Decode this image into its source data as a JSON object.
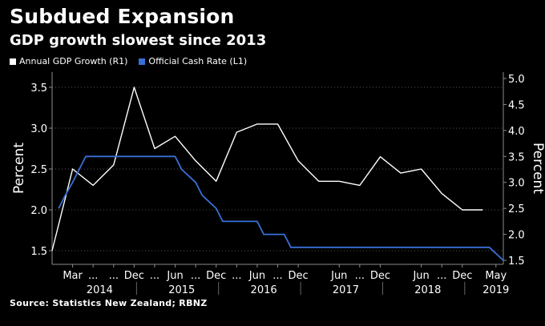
{
  "chart_data": {
    "type": "line",
    "title": "Subdued Expansion",
    "subtitle": "GDP growth slowest since 2013",
    "source": "Source: Statistics New Zealand; RBNZ",
    "colors": {
      "background": "#000000",
      "gdp": "#ffffff",
      "ocr": "#3a6fd8",
      "axis": "#8c8c8c"
    },
    "left_axis": {
      "label": "Percent",
      "ticks": [
        "1.5",
        "2.0",
        "2.5",
        "3.0",
        "3.5"
      ],
      "values": [
        1.5,
        2.0,
        2.5,
        3.0,
        3.5
      ],
      "range": [
        1.5,
        3.5
      ]
    },
    "right_axis": {
      "label": "Percent",
      "ticks": [
        "1.5",
        "2.0",
        "2.5",
        "3.0",
        "3.5",
        "4.0",
        "4.5",
        "5.0"
      ],
      "values": [
        1.5,
        2.0,
        2.5,
        3.0,
        3.5,
        4.0,
        4.5,
        5.0
      ],
      "range": [
        1.5,
        5.0
      ]
    },
    "x_month_ticks": [
      {
        "label": "Mar",
        "t": 2014.17
      },
      {
        "label": "...",
        "t": 2014.42
      },
      {
        "label": "...",
        "t": 2014.67
      },
      {
        "label": "Dec",
        "t": 2014.92
      },
      {
        "label": "...",
        "t": 2015.17
      },
      {
        "label": "Jun",
        "t": 2015.42
      },
      {
        "label": "...",
        "t": 2015.67
      },
      {
        "label": "Dec",
        "t": 2015.92
      },
      {
        "label": "...",
        "t": 2016.17
      },
      {
        "label": "Jun",
        "t": 2016.42
      },
      {
        "label": "...",
        "t": 2016.67
      },
      {
        "label": "Dec",
        "t": 2016.92
      },
      {
        "label": "Jun",
        "t": 2017.42
      },
      {
        "label": "...",
        "t": 2017.67
      },
      {
        "label": "Dec",
        "t": 2017.92
      },
      {
        "label": "Jun",
        "t": 2018.42
      },
      {
        "label": "...",
        "t": 2018.67
      },
      {
        "label": "Dec",
        "t": 2018.92
      },
      {
        "label": "May",
        "t": 2019.33
      }
    ],
    "x_year_labels": [
      {
        "label": "2014",
        "t": 2014.5
      },
      {
        "label": "2015",
        "t": 2015.5
      },
      {
        "label": "2016",
        "t": 2016.5
      },
      {
        "label": "2017",
        "t": 2017.5
      },
      {
        "label": "2018",
        "t": 2018.5
      },
      {
        "label": "2019",
        "t": 2019.33
      }
    ],
    "series": [
      {
        "name": "Annual GDP Growth (R1)",
        "axis": "left",
        "color": "#ffffff",
        "points": [
          [
            2013.92,
            1.5
          ],
          [
            2014.17,
            2.5
          ],
          [
            2014.42,
            2.3
          ],
          [
            2014.67,
            2.55
          ],
          [
            2014.92,
            3.5
          ],
          [
            2015.17,
            2.75
          ],
          [
            2015.42,
            2.9
          ],
          [
            2015.67,
            2.6
          ],
          [
            2015.92,
            2.35
          ],
          [
            2016.17,
            2.95
          ],
          [
            2016.42,
            3.05
          ],
          [
            2016.67,
            3.05
          ],
          [
            2016.92,
            2.6
          ],
          [
            2017.17,
            2.35
          ],
          [
            2017.42,
            2.35
          ],
          [
            2017.67,
            2.3
          ],
          [
            2017.92,
            2.65
          ],
          [
            2018.17,
            2.45
          ],
          [
            2018.42,
            2.5
          ],
          [
            2018.67,
            2.2
          ],
          [
            2018.92,
            2.0
          ],
          [
            2019.17,
            2.0
          ]
        ]
      },
      {
        "name": "Official Cash Rate (L1)",
        "axis": "right",
        "color": "#3a6fd8",
        "points": [
          [
            2014.0,
            2.5
          ],
          [
            2014.08,
            2.75
          ],
          [
            2014.17,
            3.0
          ],
          [
            2014.25,
            3.25
          ],
          [
            2014.33,
            3.5
          ],
          [
            2014.5,
            3.5
          ],
          [
            2015.42,
            3.5
          ],
          [
            2015.5,
            3.25
          ],
          [
            2015.67,
            3.0
          ],
          [
            2015.75,
            2.75
          ],
          [
            2015.92,
            2.5
          ],
          [
            2016.0,
            2.25
          ],
          [
            2016.17,
            2.25
          ],
          [
            2016.42,
            2.25
          ],
          [
            2016.5,
            2.0
          ],
          [
            2016.75,
            2.0
          ],
          [
            2016.83,
            1.75
          ],
          [
            2019.25,
            1.75
          ],
          [
            2019.42,
            1.5
          ]
        ]
      }
    ]
  }
}
